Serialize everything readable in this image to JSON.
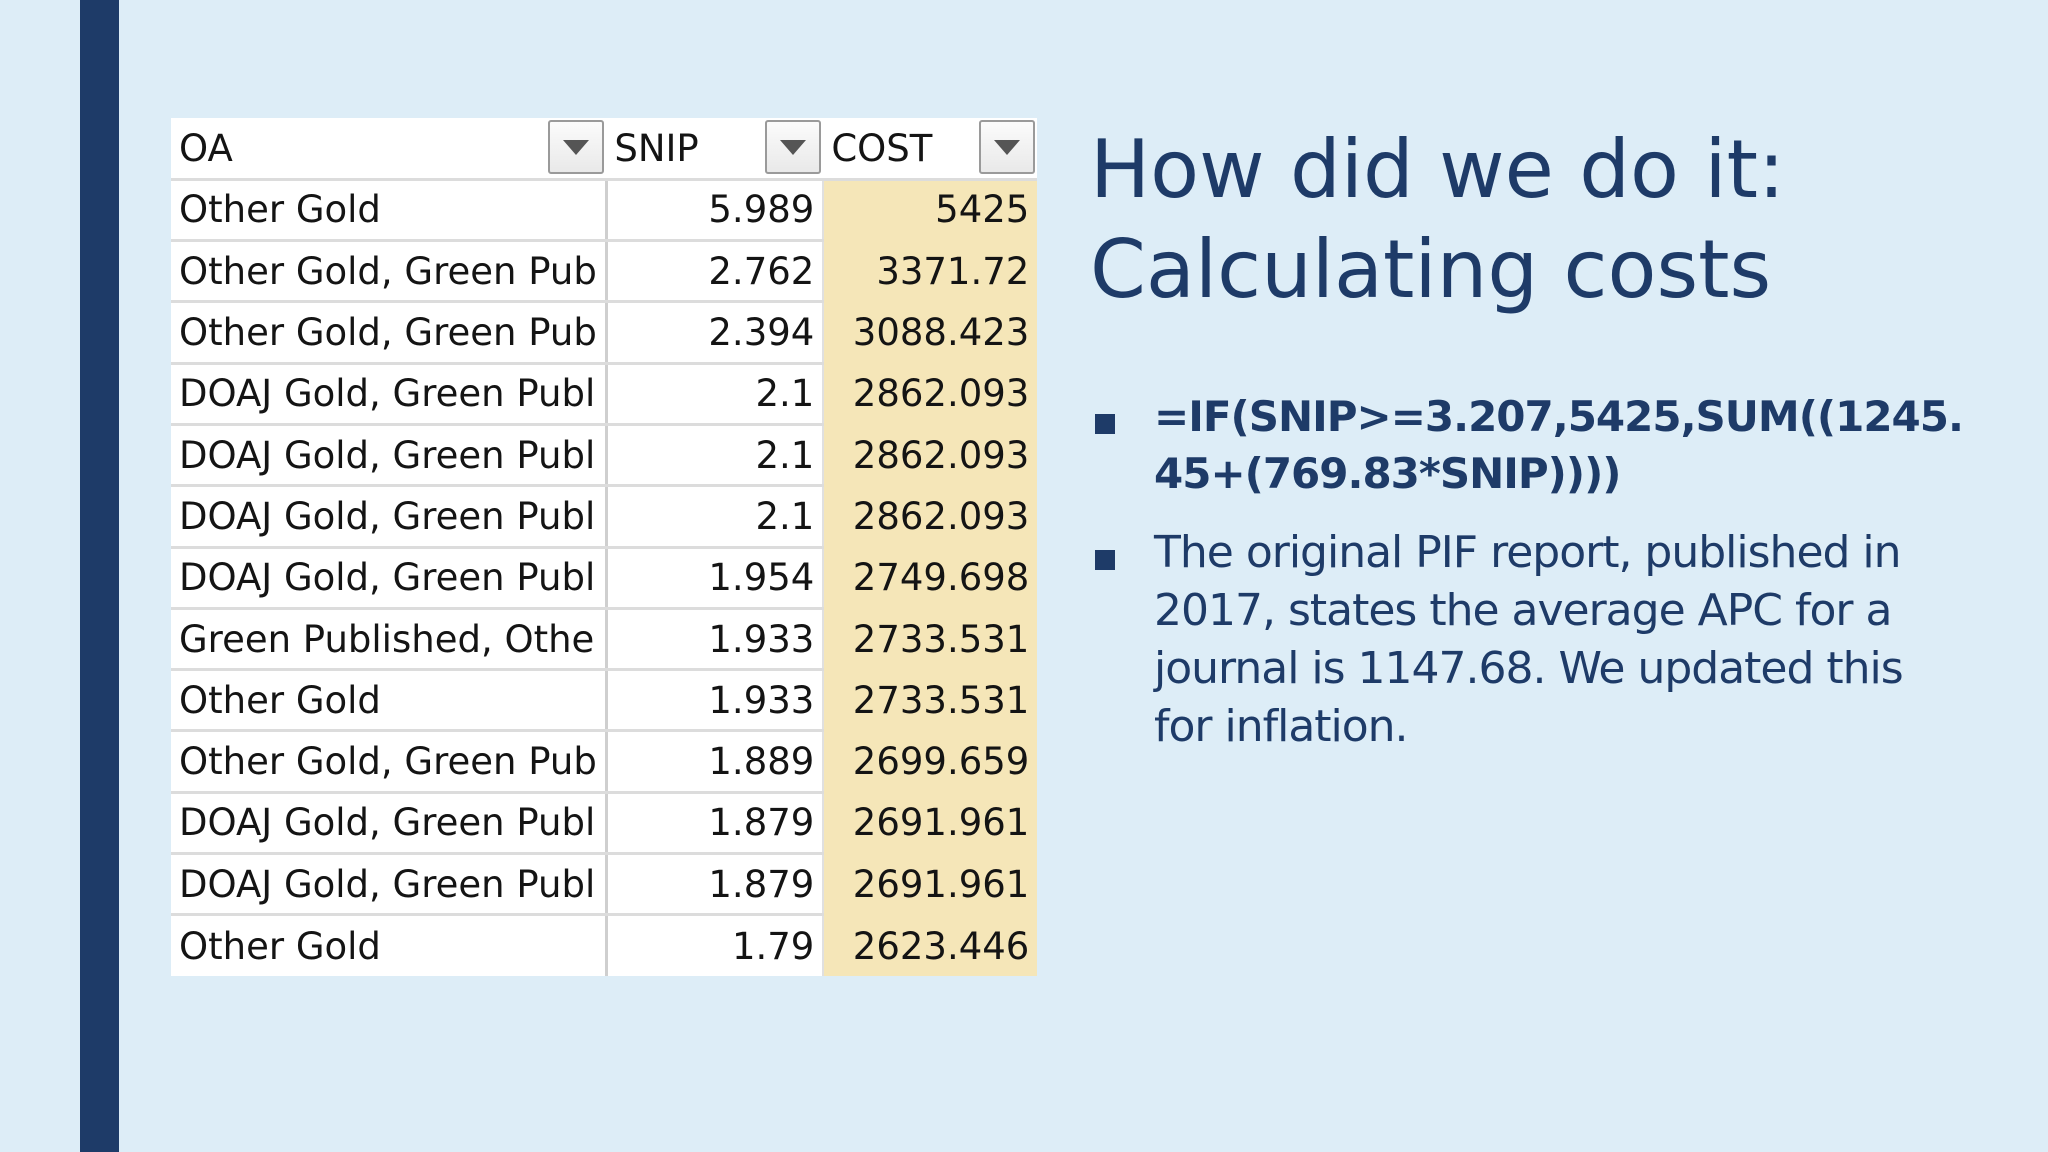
{
  "table": {
    "headers": [
      "OA",
      "SNIP",
      "COST"
    ],
    "rows": [
      [
        "Other Gold",
        "5.989",
        "5425"
      ],
      [
        "Other Gold, Green Pub",
        "2.762",
        "3371.72"
      ],
      [
        "Other Gold, Green Pub",
        "2.394",
        "3088.423"
      ],
      [
        "DOAJ Gold, Green Publ",
        "2.1",
        "2862.093"
      ],
      [
        "DOAJ Gold, Green Publ",
        "2.1",
        "2862.093"
      ],
      [
        "DOAJ Gold, Green Publ",
        "2.1",
        "2862.093"
      ],
      [
        "DOAJ Gold, Green Publ",
        "1.954",
        "2749.698"
      ],
      [
        "Green Published, Othe",
        "1.933",
        "2733.531"
      ],
      [
        "Other Gold",
        "1.933",
        "2733.531"
      ],
      [
        "Other Gold, Green Pub",
        "1.889",
        "2699.659"
      ],
      [
        "DOAJ Gold, Green Publ",
        "1.879",
        "2691.961"
      ],
      [
        "DOAJ Gold, Green Publ",
        "1.879",
        "2691.961"
      ],
      [
        "Other Gold",
        "1.79",
        "2623.446"
      ]
    ],
    "cost_highlight_color": "#f5e6b8",
    "filter_icon": "dropdown-arrow-icon"
  },
  "title": {
    "line1": "How did we do it:",
    "line2": "Calculating costs"
  },
  "bullets": [
    {
      "lines": [
        "=IF(SNIP>=3.207,5425,SUM((1245.",
        "45+(769.83*SNIP))))"
      ]
    },
    {
      "lines": [
        "The original PIF report, published in",
        "2017, states the average APC for a",
        "journal is 1147.68. We updated this",
        "for inflation."
      ]
    }
  ],
  "colors": {
    "background": "#ddedf7",
    "accent": "#1e3b68"
  }
}
